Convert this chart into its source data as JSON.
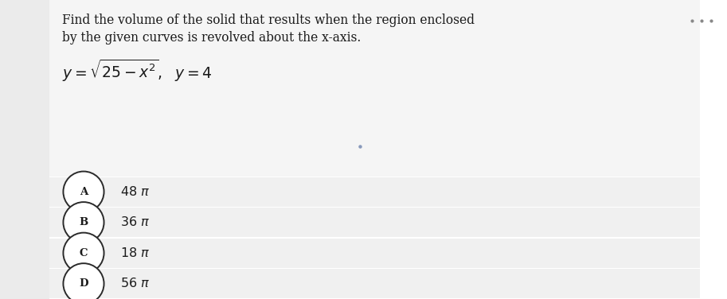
{
  "title_line1": "Find the volume of the solid that results when the region enclosed",
  "title_line2": "by the given curves is revolved about the x-axis.",
  "bg_color_sidebar": "#ebebeb",
  "bg_color_top": "#f5f5f5",
  "bg_color_option": "#f0f0f0",
  "bg_color_main": "#ffffff",
  "text_color": "#1a1a1a",
  "circle_edge_color": "#2a2a2a",
  "dots_color": "#888888",
  "option_letters": [
    "A",
    "B",
    "C",
    "D"
  ],
  "option_values": [
    "48 π",
    "36 π",
    "18 π",
    "56 π"
  ],
  "figsize": [
    9.13,
    3.76
  ],
  "dpi": 100
}
